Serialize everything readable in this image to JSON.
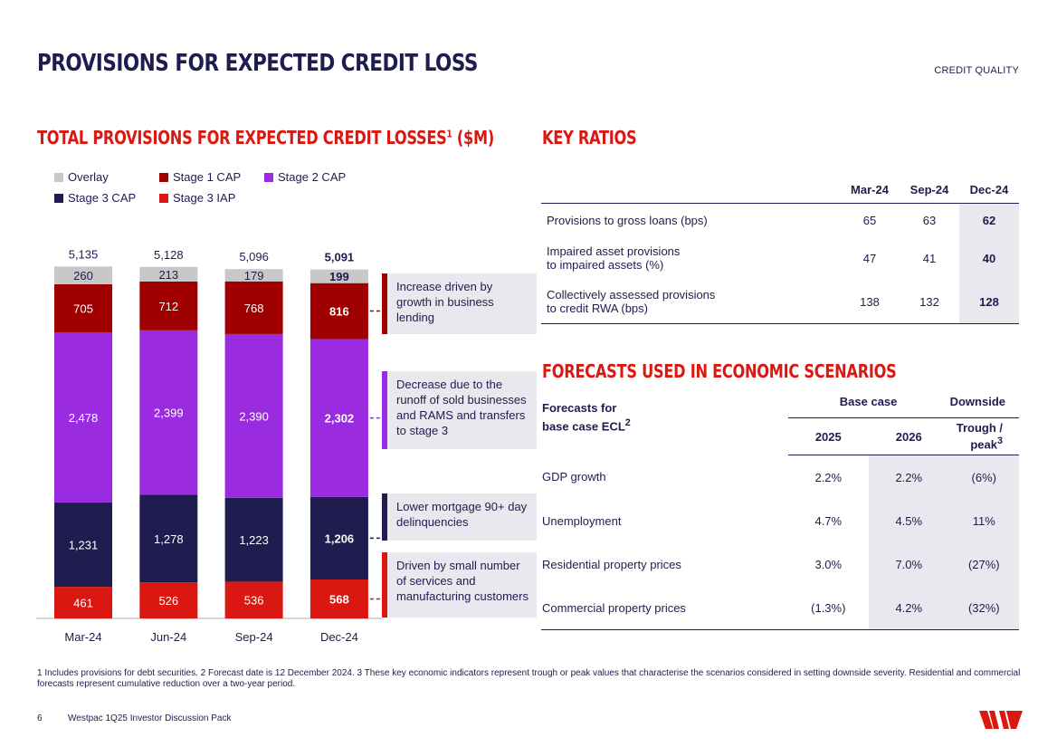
{
  "header": {
    "title": "PROVISIONS FOR EXPECTED CREDIT LOSS",
    "section": "CREDIT QUALITY"
  },
  "chart_section": {
    "title": "TOTAL PROVISIONS FOR EXPECTED CREDIT LOSSES",
    "title_sup": "1",
    "title_suffix": " ($M)"
  },
  "chart_data": {
    "type": "bar",
    "stacked": true,
    "title": "TOTAL PROVISIONS FOR EXPECTED CREDIT LOSSES1 ($M)",
    "categories": [
      "Mar-24",
      "Jun-24",
      "Sep-24",
      "Dec-24"
    ],
    "totals": [
      "5,135",
      "5,128",
      "5,096",
      "5,091"
    ],
    "series": [
      {
        "name": "Stage 3 IAP",
        "color": "#da1710",
        "values": [
          461,
          526,
          536,
          568
        ],
        "labels": [
          "461",
          "526",
          "536",
          "568"
        ]
      },
      {
        "name": "Stage 3 CAP",
        "color": "#1f1c4f",
        "values": [
          1231,
          1278,
          1223,
          1206
        ],
        "labels": [
          "1,231",
          "1,278",
          "1,223",
          "1,206"
        ]
      },
      {
        "name": "Stage 2 CAP",
        "color": "#9b2be0",
        "values": [
          2478,
          2399,
          2390,
          2302
        ],
        "labels": [
          "2,478",
          "2,399",
          "2,390",
          "2,302"
        ]
      },
      {
        "name": "Stage 1 CAP",
        "color": "#a00000",
        "values": [
          705,
          712,
          768,
          816
        ],
        "labels": [
          "705",
          "712",
          "768",
          "816"
        ]
      },
      {
        "name": "Overlay",
        "color": "#c8c8c8",
        "values": [
          260,
          213,
          179,
          199
        ],
        "labels": [
          "260",
          "213",
          "179",
          "199"
        ]
      }
    ],
    "highlight_category": "Dec-24",
    "legend_order": [
      "Overlay",
      "Stage 1 CAP",
      "Stage 2 CAP",
      "Stage 3 CAP",
      "Stage 3 IAP"
    ]
  },
  "legend": [
    {
      "label": "Overlay",
      "color": "#c8c8c8"
    },
    {
      "label": "Stage 1 CAP",
      "color": "#a00000"
    },
    {
      "label": "Stage 2 CAP",
      "color": "#9b2be0"
    },
    {
      "label": "Stage 3 CAP",
      "color": "#1f1c4f"
    },
    {
      "label": "Stage 3 IAP",
      "color": "#da1710"
    }
  ],
  "callouts": [
    {
      "text": "Increase driven by growth in business lending",
      "color": "#a00000"
    },
    {
      "text": "Decrease due to the runoff of sold businesses and RAMS and transfers to stage 3",
      "color": "#9b2be0"
    },
    {
      "text": "Lower mortgage 90+ day delinquencies",
      "color": "#1f1c4f"
    },
    {
      "text": "Driven by small number of services and manufacturing customers",
      "color": "#da1710"
    }
  ],
  "key_ratios": {
    "title": "KEY RATIOS",
    "columns": [
      "Mar-24",
      "Sep-24",
      "Dec-24"
    ],
    "rows": [
      {
        "label_1": "Provisions to gross loans (bps)",
        "label_2": "",
        "values": [
          "65",
          "63",
          "62"
        ]
      },
      {
        "label_1": "Impaired asset provisions",
        "label_2": "to impaired assets (%)",
        "values": [
          "47",
          "41",
          "40"
        ]
      },
      {
        "label_1": "Collectively assessed provisions",
        "label_2": "to credit RWA (bps)",
        "values": [
          "138",
          "132",
          "128"
        ]
      }
    ]
  },
  "forecasts": {
    "title": "FORECASTS USED IN ECONOMIC SCENARIOS",
    "corner_1": "Forecasts for",
    "corner_2": "base case ECL",
    "corner_sup": "2",
    "group_base": "Base case",
    "group_down": "Downside",
    "col_2025": "2025",
    "col_2026": "2026",
    "col_trough_1": "Trough /",
    "col_trough_2": "peak",
    "col_trough_sup": "3",
    "rows": [
      {
        "label": "GDP growth",
        "v2025": "2.2%",
        "v2026": "2.2%",
        "down": "(6%)"
      },
      {
        "label": "Unemployment",
        "v2025": "4.7%",
        "v2026": "4.5%",
        "down": "11%"
      },
      {
        "label": "Residential property prices",
        "v2025": "3.0%",
        "v2026": "7.0%",
        "down": "(27%)"
      },
      {
        "label": "Commercial property prices",
        "v2025": "(1.3%)",
        "v2026": "4.2%",
        "down": "(32%)"
      }
    ]
  },
  "footnote": "1 Includes provisions for debt securities. 2 Forecast date is 12 December 2024. 3 These key economic indicators represent trough or peak values that characterise the scenarios considered in setting downside severity. Residential and commercial forecasts represent cumulative reduction over a two-year period.",
  "footer": {
    "page": "6",
    "source": "Westpac 1Q25 Investor Discussion Pack"
  },
  "brand": {
    "accent": "#da1710",
    "navy": "#1f1c4f"
  }
}
